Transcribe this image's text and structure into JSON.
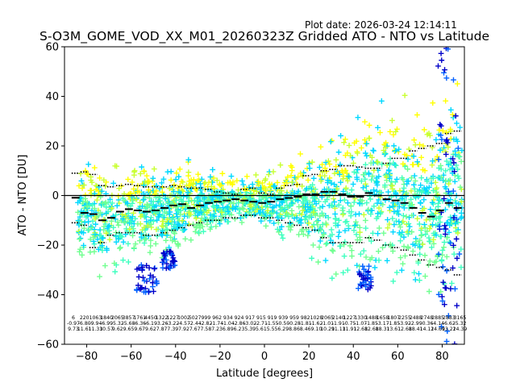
{
  "plot_date": "Plot date: 2026-03-24 12:14:11",
  "chart_data": {
    "type": "scatter",
    "title": "S-O3M_GOME_VOD_XX_M01_20260323Z Gridded ATO - NTO vs Latitude",
    "xlabel": "Latitude [degrees]",
    "ylabel": "ATO - NTO [DU]",
    "xlim": [
      -90,
      90
    ],
    "ylim": [
      -60,
      60
    ],
    "xticks": [
      -80,
      -60,
      -40,
      -20,
      0,
      20,
      40,
      60,
      80
    ],
    "yticks": [
      -60,
      -40,
      -20,
      0,
      20,
      40,
      60
    ],
    "grid": false,
    "marker": "+",
    "color_scale": [
      "#0000c8",
      "#0060ff",
      "#00d8ff",
      "#40ffc0",
      "#70ff90",
      "#c8ff30",
      "#ffff00"
    ],
    "reference_line_y": 0,
    "scatter_envelope": {
      "lat": [
        -82,
        -78,
        -74,
        -70,
        -66,
        -62,
        -58,
        -54,
        -50,
        -46,
        -42,
        -38,
        -34,
        -30,
        -26,
        -22,
        -18,
        -14,
        -10,
        -6,
        -2,
        2,
        6,
        10,
        14,
        18,
        22,
        26,
        30,
        34,
        38,
        42,
        46,
        50,
        54,
        58,
        62,
        66,
        70,
        74,
        78,
        82,
        86
      ],
      "upper": [
        16,
        18,
        20,
        20,
        20,
        18,
        17,
        18,
        17,
        16,
        16,
        16,
        16,
        15,
        14,
        13,
        12,
        12,
        10,
        10,
        10,
        12,
        14,
        16,
        20,
        22,
        26,
        28,
        30,
        32,
        36,
        40,
        44,
        46,
        50,
        48,
        44,
        40,
        40,
        42,
        48,
        52,
        55
      ],
      "lower": [
        -30,
        -35,
        -38,
        -38,
        -38,
        -35,
        -32,
        -30,
        -30,
        -30,
        -28,
        -25,
        -24,
        -22,
        -20,
        -18,
        -17,
        -15,
        -14,
        -14,
        -15,
        -17,
        -20,
        -22,
        -25,
        -28,
        -30,
        -35,
        -38,
        -40,
        -42,
        -40,
        -38,
        -38,
        -40,
        -42,
        -45,
        -45,
        -48,
        -50,
        -52,
        -52,
        -50
      ]
    },
    "blue_clusters": [
      {
        "lat": [
          -58,
          -48
        ],
        "ato_nto": [
          -40,
          -28
        ]
      },
      {
        "lat": [
          -46,
          -40
        ],
        "ato_nto": [
          -30,
          -22
        ]
      },
      {
        "lat": [
          42,
          48
        ],
        "ato_nto": [
          -38,
          -28
        ]
      },
      {
        "lat": [
          78,
          88
        ],
        "ato_nto": [
          -60,
          60
        ]
      }
    ],
    "bin_lat": [
      -85,
      -81,
      -77,
      -73,
      -69,
      -65,
      -61,
      -57,
      -53,
      -49,
      -45,
      -41,
      -37,
      -33,
      -29,
      -25,
      -21,
      -17,
      -13,
      -9,
      -5,
      -1,
      3,
      7,
      11,
      15,
      19,
      23,
      27,
      31,
      35,
      39,
      43,
      47,
      51,
      55,
      59,
      63,
      67,
      71,
      75,
      79,
      83,
      87
    ],
    "bin_mean": [
      -0.9,
      -7,
      -7.5,
      -10,
      -9,
      -6.5,
      -5.5,
      -6,
      -6.5,
      -6,
      -5,
      -4,
      -3.5,
      -5,
      -4,
      -3,
      -2.5,
      -2,
      -1.5,
      -2,
      -2.5,
      -3,
      -2.5,
      -1.5,
      -1,
      -0.5,
      0.5,
      0.5,
      1.5,
      1.5,
      0.5,
      -0.5,
      -0.5,
      1,
      0,
      -1.5,
      -2,
      -3,
      -5,
      -7,
      -8.5,
      -6,
      -3,
      -5
    ],
    "bin_std_upper": [
      9,
      9.5,
      8.5,
      4,
      3.5,
      4,
      4.5,
      4,
      3.5,
      3.5,
      3.5,
      4,
      3.5,
      3,
      3,
      2.5,
      1.5,
      1,
      0.5,
      2.5,
      3,
      1,
      0.5,
      3,
      4,
      4.5,
      8,
      8.5,
      10,
      10.5,
      12,
      12,
      11.5,
      11,
      11,
      13,
      15,
      15,
      18,
      19,
      20,
      21,
      25,
      26
    ],
    "bin_std_lower": [
      -11,
      -12,
      -21,
      -19,
      -16,
      -15,
      -15,
      -15,
      -16,
      -16,
      -15,
      -14,
      -13,
      -12,
      -11,
      -10,
      -10,
      -9,
      -9,
      -8,
      -8,
      -9,
      -9,
      -10,
      -11,
      -12,
      -13,
      -14,
      -17,
      -19,
      -19,
      -19,
      -19,
      -17,
      -18,
      -20,
      -21,
      -22,
      -24,
      -26,
      -28,
      -29,
      -30,
      -32
    ],
    "bin_stats_rows": {
      "count": [
        "6",
        "220",
        "1063",
        "1840",
        "2065",
        "3857",
        "1761",
        "4450",
        "1322",
        "1227",
        "1002",
        "5027",
        "999",
        "962",
        "934",
        "924",
        "917",
        "915",
        "919",
        "939",
        "959",
        "982",
        "1028",
        "2065",
        "2140",
        "1227",
        "1330",
        "1488",
        "1658",
        "1807",
        "2255",
        "2488",
        "2748",
        "2885",
        "2883",
        "3165"
      ],
      "mean": [
        "-0.97",
        "-6.80",
        "-9.94",
        "-6.99",
        "-5.32",
        "-5.68",
        "-6.36",
        "-6.19",
        "-3.26",
        "-3.22",
        "-4.57",
        "-2.44",
        "-2.82",
        "-1.74",
        "-1.04",
        "-2.86",
        "-3.02",
        "-2.71",
        "-1.55",
        "-0.50",
        "-0.28",
        "-1.81",
        "-1.62",
        "-1.01",
        "-1.91",
        "-0.75",
        "-1.07",
        "-1.85",
        "-3.17",
        "-1.85",
        "-3.92",
        "-2.99",
        "-0.36",
        "-4.14",
        "-6.62",
        "-5.32"
      ],
      "std": [
        "9.73",
        "11.61",
        "11.33",
        "10.57",
        "9.62",
        "9.65",
        "9.67",
        "9.62",
        "7.87",
        "7.39",
        "7.92",
        "7.67",
        "7.58",
        "7.23",
        "6.89",
        "6.23",
        "5.39",
        "5.61",
        "5.55",
        "6.29",
        "8.86",
        "8.46",
        "9.10",
        "10.29",
        "11.13",
        "11.91",
        "12.68",
        "12.68",
        "18.31",
        "13.61",
        "12.68",
        "18.41",
        "14.12",
        "14.69",
        "13.22",
        "14.39"
      ]
    }
  }
}
